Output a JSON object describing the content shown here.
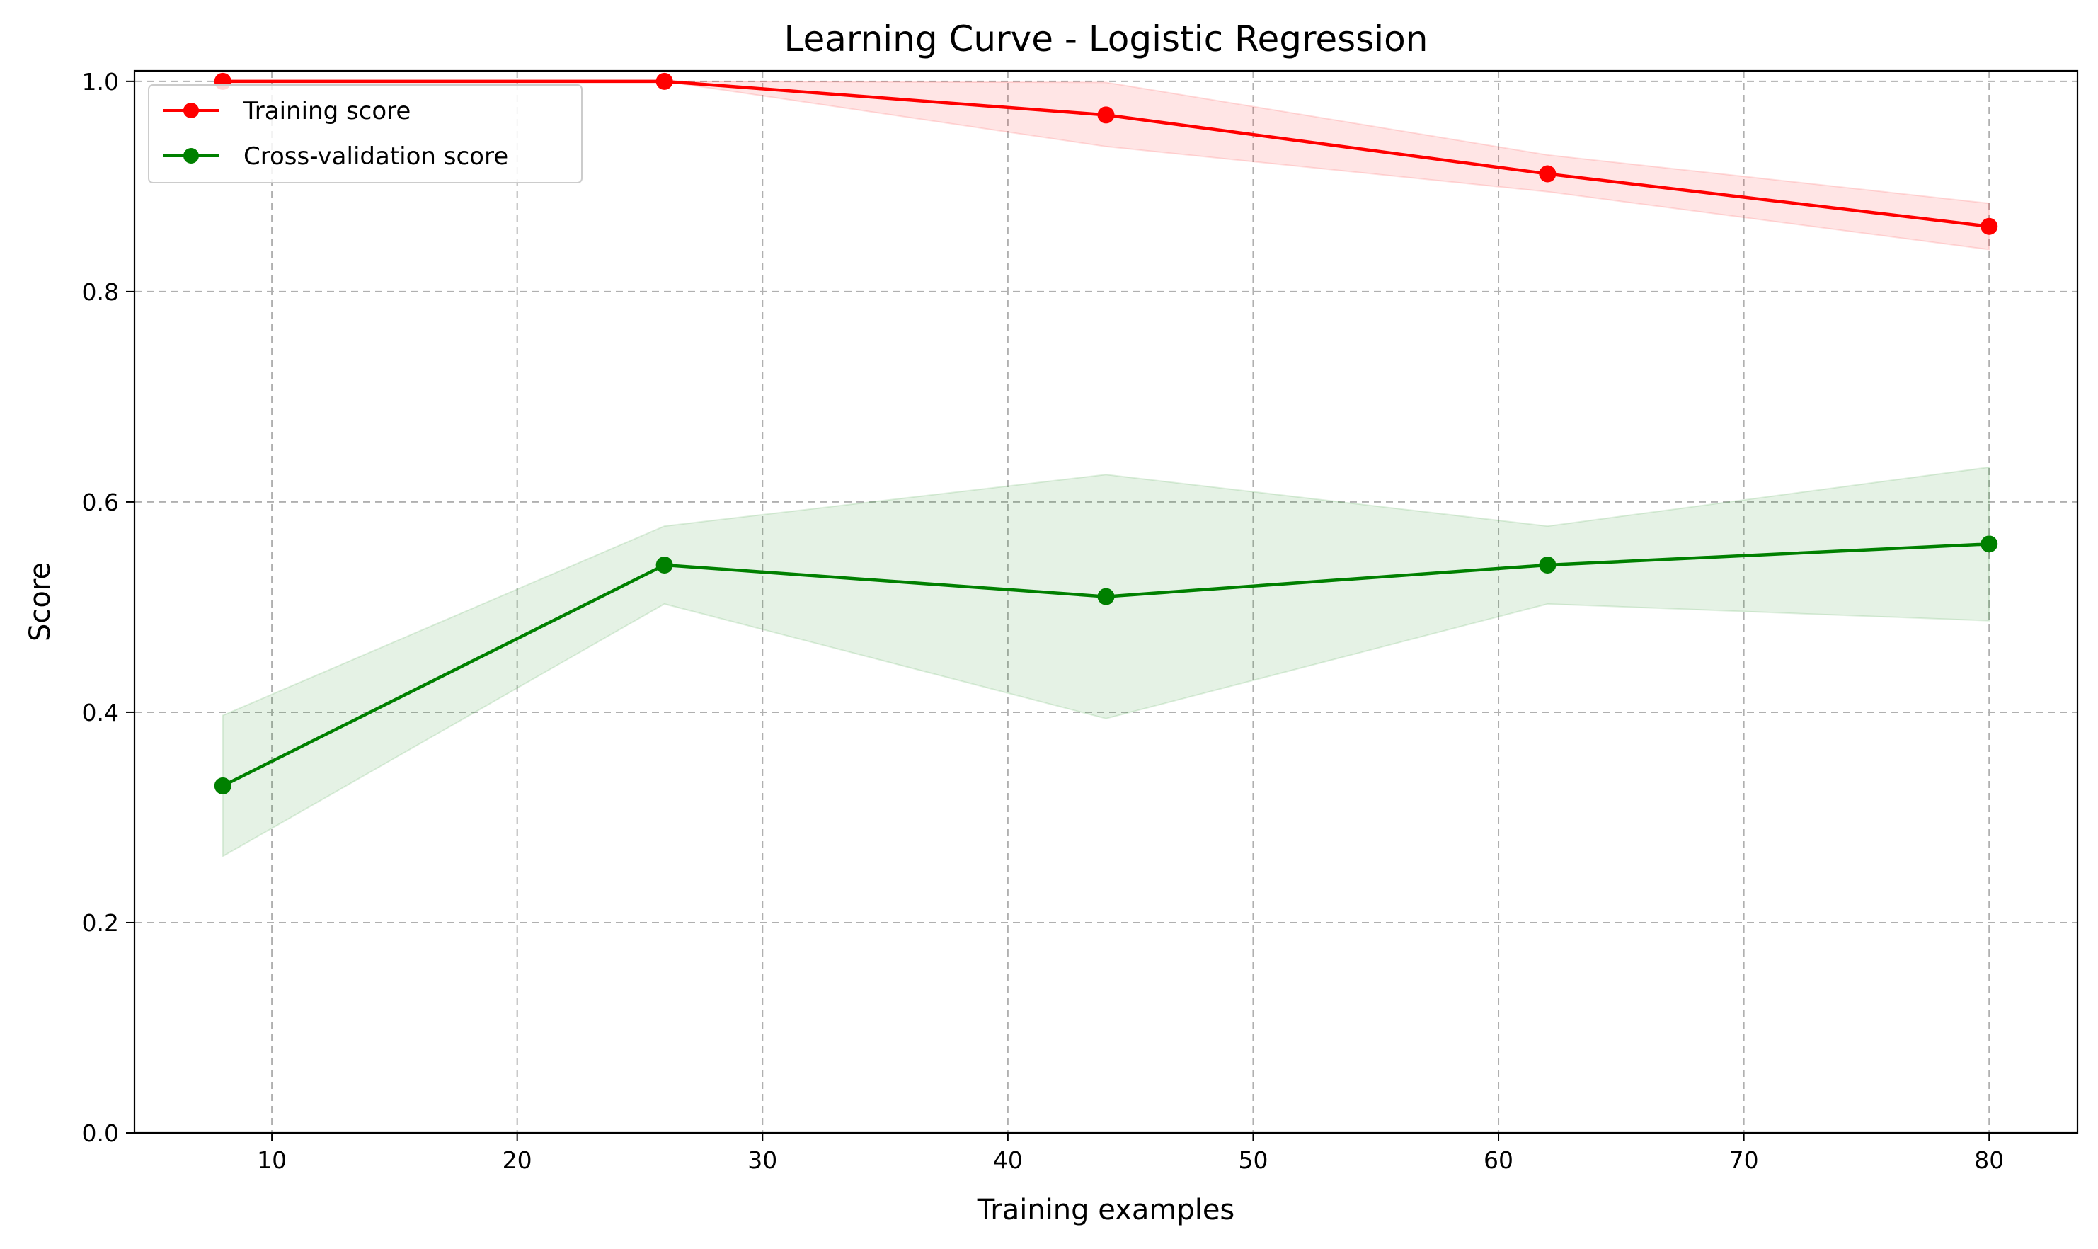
{
  "chart_data": {
    "type": "line",
    "title": "Learning Curve - Logistic Regression",
    "xlabel": "Training examples",
    "ylabel": "Score",
    "xlim": [
      4.4,
      83.6
    ],
    "ylim": [
      0,
      1.01
    ],
    "xticks": [
      10,
      20,
      30,
      40,
      50,
      60,
      70,
      80
    ],
    "yticks": [
      0.0,
      0.2,
      0.4,
      0.6,
      0.8,
      1.0
    ],
    "xtick_labels": [
      "10",
      "20",
      "30",
      "40",
      "50",
      "60",
      "70",
      "80"
    ],
    "ytick_labels": [
      "0.0",
      "0.2",
      "0.4",
      "0.6",
      "0.8",
      "1.0"
    ],
    "grid": true,
    "legend_position": "upper-left",
    "x": [
      8,
      26,
      44,
      62,
      80
    ],
    "series": [
      {
        "name": "Training score",
        "color": "#ff0000",
        "band_color": "#ff0000",
        "values": [
          1.0,
          1.0,
          0.968,
          0.912,
          0.862
        ],
        "band_low": [
          1.0,
          1.0,
          0.938,
          0.895,
          0.84
        ],
        "band_high": [
          1.0,
          1.0,
          0.999,
          0.93,
          0.884
        ]
      },
      {
        "name": "Cross-validation score",
        "color": "#008000",
        "band_color": "#008000",
        "values": [
          0.33,
          0.54,
          0.51,
          0.54,
          0.56
        ],
        "band_low": [
          0.263,
          0.503,
          0.394,
          0.503,
          0.487
        ],
        "band_high": [
          0.397,
          0.577,
          0.626,
          0.577,
          0.633
        ]
      }
    ]
  }
}
